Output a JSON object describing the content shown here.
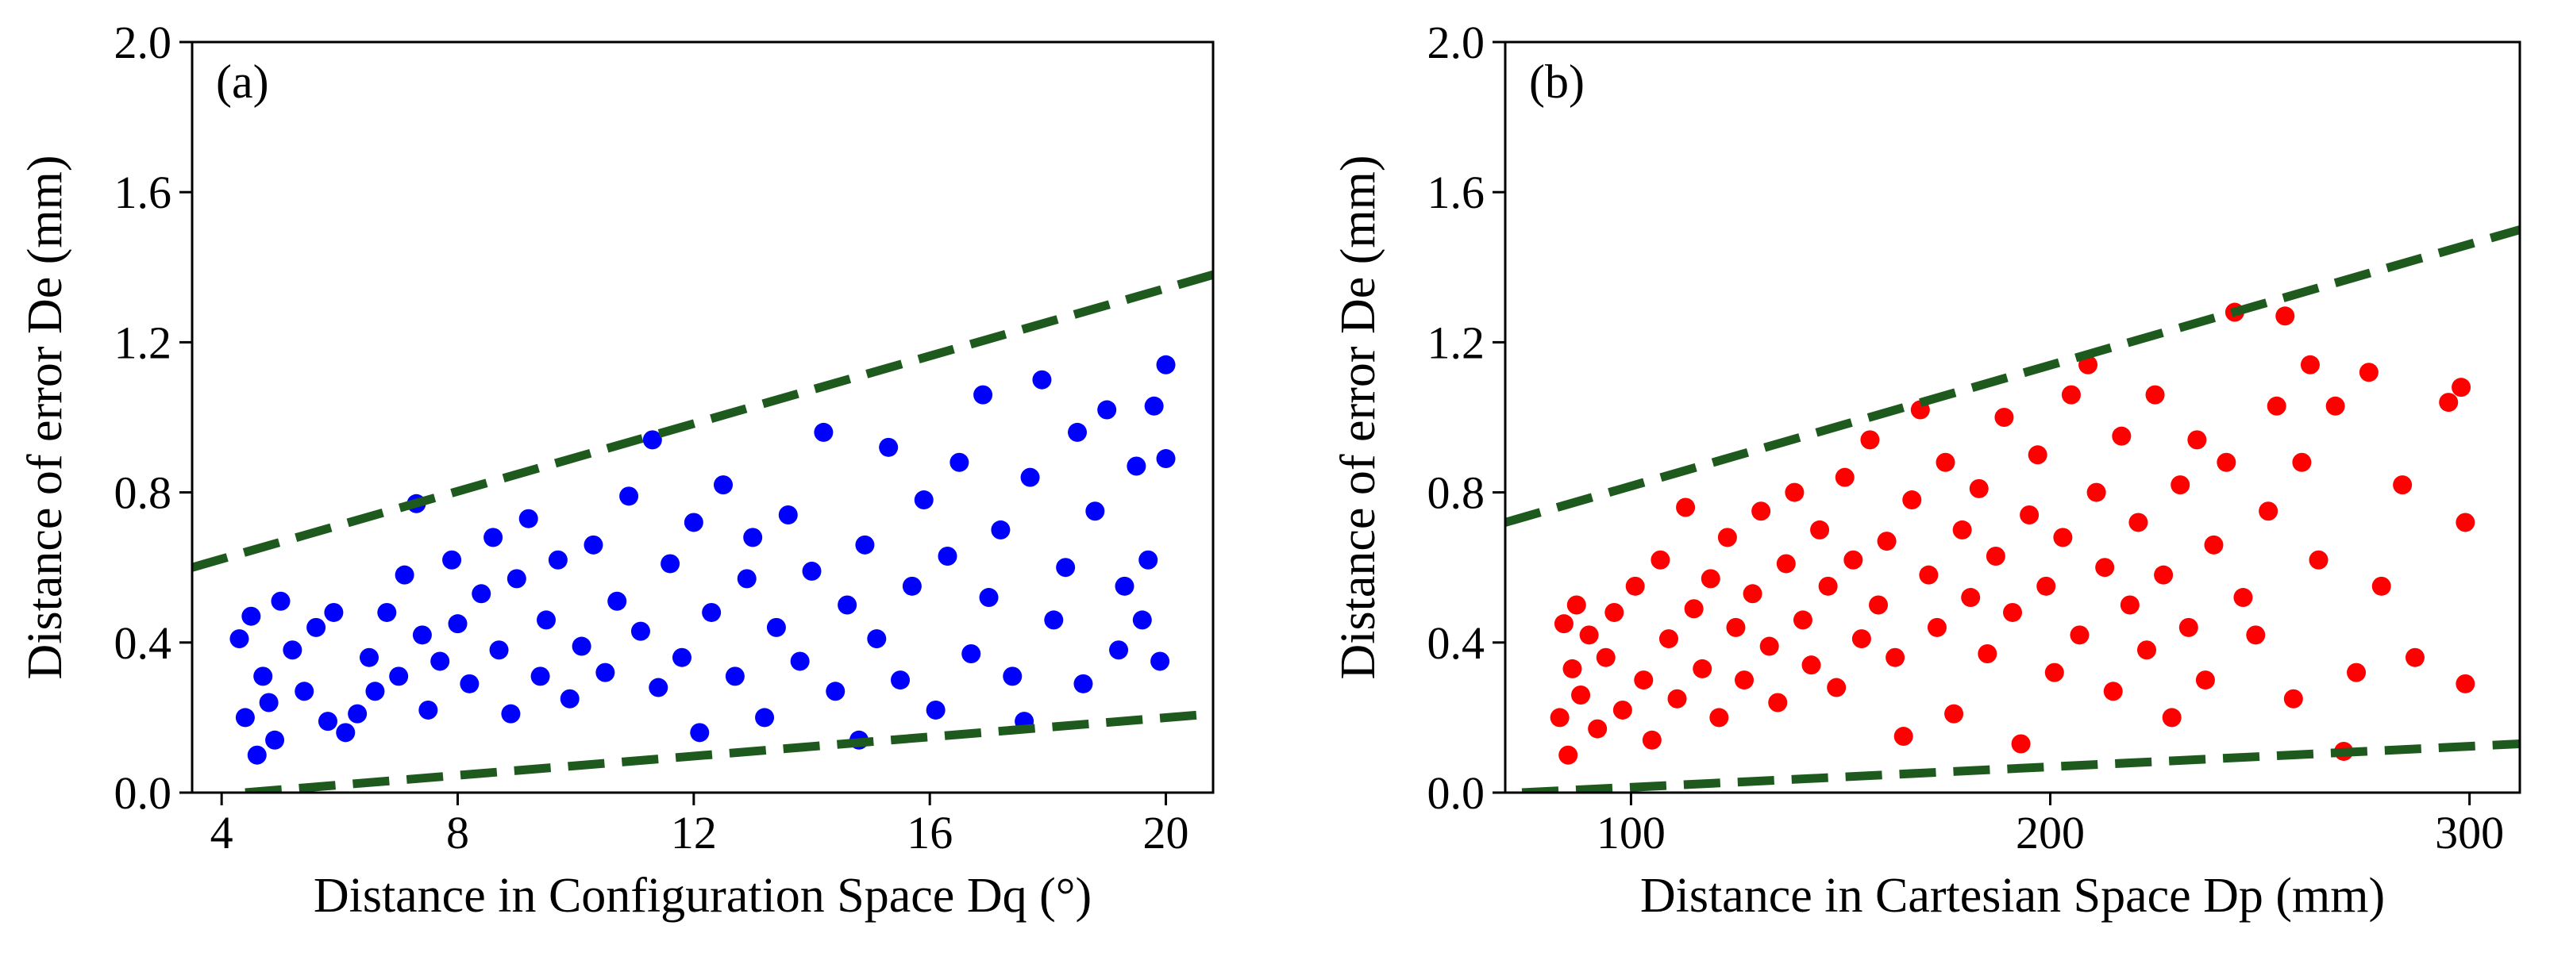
{
  "chart_data": [
    {
      "type": "scatter",
      "color": "#0000ff",
      "xlabel": "Distance in Configuration Space Dq (°)",
      "ylabel": "Distance of error De (mm)",
      "annotation": "(a)",
      "xlim": [
        3.5,
        20.8
      ],
      "ylim": [
        0,
        2
      ],
      "xticks": [
        4,
        8,
        12,
        16,
        20
      ],
      "yticks": [
        {
          "value": 0,
          "label": "0.0"
        },
        0.4,
        0.8,
        1.2,
        1.6,
        {
          "value": 2,
          "label": "2.0"
        }
      ],
      "x": [
        4.3,
        4.4,
        4.5,
        4.6,
        4.7,
        4.8,
        4.9,
        5.0,
        5.2,
        5.4,
        5.6,
        5.8,
        5.9,
        6.1,
        6.3,
        6.5,
        6.6,
        6.8,
        7.0,
        7.1,
        7.3,
        7.4,
        7.5,
        7.7,
        7.9,
        8.0,
        8.2,
        8.4,
        8.6,
        8.7,
        8.9,
        9.0,
        9.2,
        9.4,
        9.5,
        9.7,
        9.9,
        10.1,
        10.3,
        10.5,
        10.7,
        10.9,
        11.1,
        11.3,
        11.4,
        11.6,
        11.8,
        12.0,
        12.1,
        12.3,
        12.5,
        12.7,
        12.9,
        13.0,
        13.2,
        13.4,
        13.6,
        13.8,
        14.0,
        14.2,
        14.4,
        14.6,
        14.8,
        14.9,
        15.1,
        15.3,
        15.5,
        15.7,
        15.9,
        16.1,
        16.3,
        16.5,
        16.7,
        16.9,
        17.0,
        17.2,
        17.4,
        17.6,
        17.7,
        17.9,
        18.1,
        18.3,
        18.5,
        18.6,
        18.8,
        19.0,
        19.2,
        19.3,
        19.5,
        19.6,
        19.8,
        19.9,
        20.0,
        20.0,
        19.7
      ],
      "values": [
        0.41,
        0.2,
        0.47,
        0.1,
        0.31,
        0.24,
        0.14,
        0.51,
        0.38,
        0.27,
        0.44,
        0.19,
        0.48,
        0.16,
        0.21,
        0.36,
        0.27,
        0.48,
        0.31,
        0.58,
        0.77,
        0.42,
        0.22,
        0.35,
        0.62,
        0.45,
        0.29,
        0.53,
        0.68,
        0.38,
        0.21,
        0.57,
        0.73,
        0.31,
        0.46,
        0.62,
        0.25,
        0.39,
        0.66,
        0.32,
        0.51,
        0.79,
        0.43,
        0.94,
        0.28,
        0.61,
        0.36,
        0.72,
        0.16,
        0.48,
        0.82,
        0.31,
        0.57,
        0.68,
        0.2,
        0.44,
        0.74,
        0.35,
        0.59,
        0.96,
        0.27,
        0.5,
        0.14,
        0.66,
        0.41,
        0.92,
        0.3,
        0.55,
        0.78,
        0.22,
        0.63,
        0.88,
        0.37,
        1.06,
        0.52,
        0.7,
        0.31,
        0.19,
        0.84,
        1.1,
        0.46,
        0.6,
        0.96,
        0.29,
        0.75,
        1.02,
        0.38,
        0.55,
        0.87,
        0.46,
        1.03,
        0.35,
        1.14,
        0.89,
        0.62
      ],
      "lines": [
        {
          "color": "#1e5a1e",
          "x": [
            3.5,
            20.8
          ],
          "y": [
            0.6,
            1.38
          ]
        },
        {
          "color": "#1e5a1e",
          "x": [
            4.4,
            20.8
          ],
          "y": [
            0,
            0.21
          ]
        }
      ]
    },
    {
      "type": "scatter",
      "color": "#ff0000",
      "xlabel": "Distance in Cartesian Space Dp (mm)",
      "ylabel": "Distance of error De (mm)",
      "annotation": "(b)",
      "xlim": [
        70,
        312
      ],
      "ylim": [
        0,
        2
      ],
      "xticks": [
        100,
        200,
        300
      ],
      "yticks": [
        {
          "value": 0,
          "label": "0.0"
        },
        0.4,
        0.8,
        1.2,
        1.6,
        {
          "value": 2,
          "label": "2.0"
        }
      ],
      "x": [
        83,
        84,
        85,
        86,
        87,
        88,
        90,
        92,
        94,
        96,
        98,
        101,
        103,
        105,
        107,
        109,
        111,
        113,
        115,
        117,
        119,
        121,
        123,
        125,
        127,
        129,
        131,
        133,
        135,
        137,
        139,
        141,
        143,
        145,
        147,
        149,
        151,
        153,
        155,
        157,
        159,
        161,
        163,
        165,
        167,
        169,
        171,
        173,
        175,
        177,
        179,
        181,
        183,
        185,
        187,
        189,
        191,
        193,
        195,
        197,
        199,
        201,
        203,
        205,
        207,
        209,
        211,
        213,
        215,
        217,
        219,
        221,
        223,
        225,
        227,
        229,
        231,
        233,
        235,
        237,
        239,
        242,
        244,
        246,
        249,
        252,
        254,
        256,
        258,
        260,
        262,
        264,
        268,
        270,
        273,
        276,
        279,
        284,
        287,
        295,
        298,
        299,
        299
      ],
      "values": [
        0.2,
        0.45,
        0.1,
        0.33,
        0.5,
        0.26,
        0.42,
        0.17,
        0.36,
        0.48,
        0.22,
        0.55,
        0.3,
        0.14,
        0.62,
        0.41,
        0.25,
        0.76,
        0.49,
        0.33,
        0.57,
        0.2,
        0.68,
        0.44,
        0.3,
        0.53,
        0.75,
        0.39,
        0.24,
        0.61,
        0.8,
        0.46,
        0.34,
        0.7,
        0.55,
        0.28,
        0.84,
        0.62,
        0.41,
        0.94,
        0.5,
        0.67,
        0.36,
        0.15,
        0.78,
        1.02,
        0.58,
        0.44,
        0.88,
        0.21,
        0.7,
        0.52,
        0.81,
        0.37,
        0.63,
        1.0,
        0.48,
        0.13,
        0.74,
        0.9,
        0.55,
        0.32,
        0.68,
        1.06,
        0.42,
        1.14,
        0.8,
        0.6,
        0.27,
        0.95,
        0.5,
        0.72,
        0.38,
        1.06,
        0.58,
        0.2,
        0.82,
        0.44,
        0.94,
        0.3,
        0.66,
        0.88,
        1.28,
        0.52,
        0.42,
        0.75,
        1.03,
        1.27,
        0.25,
        0.88,
        1.14,
        0.62,
        1.03,
        0.11,
        0.32,
        1.12,
        0.55,
        0.82,
        0.36,
        1.04,
        1.08,
        0.72,
        0.29
      ],
      "lines": [
        {
          "color": "#1e5a1e",
          "x": [
            70,
            312
          ],
          "y": [
            0.72,
            1.5
          ]
        },
        {
          "color": "#1e5a1e",
          "x": [
            74,
            312
          ],
          "y": [
            0,
            0.13
          ]
        }
      ]
    }
  ]
}
